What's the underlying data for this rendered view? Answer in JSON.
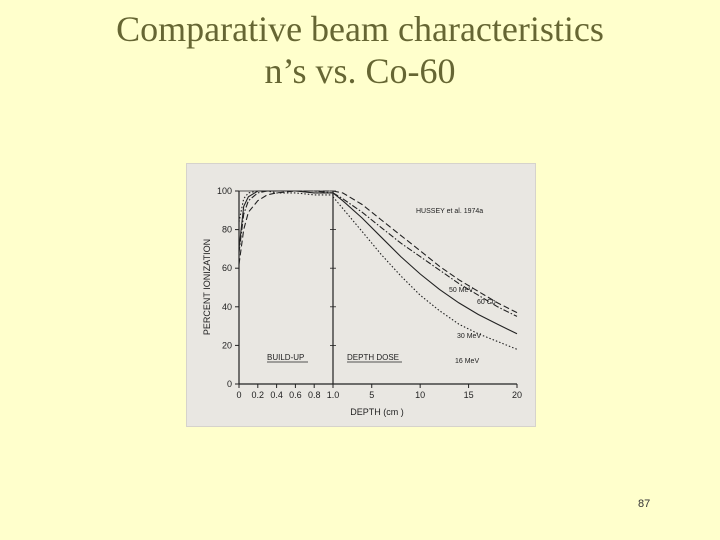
{
  "slide": {
    "title_line1": "Comparative beam characteristics",
    "title_line2": "n’s vs. Co-60",
    "page_number": "87"
  },
  "chart_data": {
    "type": "line",
    "annotation": "HUSSEY et al. 1974a",
    "ylabel": "PERCENT IONIZATION",
    "xlabel": "DEPTH (cm )",
    "ylim": [
      0,
      100
    ],
    "y_ticks": [
      "0",
      "20",
      "40",
      "60",
      "80",
      "100"
    ],
    "regions": [
      {
        "label": "BUILD-UP",
        "xlim": [
          0,
          1.0
        ],
        "ticks": [
          "0",
          "0.2",
          "0.4",
          "0.6",
          "0.8",
          "1.0"
        ]
      },
      {
        "label": "DEPTH DOSE",
        "xlim": [
          1.0,
          20
        ],
        "ticks": [
          "5",
          "10",
          "15",
          "20"
        ]
      }
    ],
    "grid": false,
    "series": [
      {
        "name": "50 MeV",
        "buildup": {
          "x": [
            0,
            0.05,
            0.1,
            0.2,
            0.3,
            0.4,
            0.6,
            0.8,
            1.0
          ],
          "y": [
            62,
            80,
            89,
            95,
            98,
            99,
            100,
            100,
            100
          ]
        },
        "depth": {
          "x": [
            1,
            2,
            4,
            6,
            8,
            10,
            12,
            14,
            16,
            18,
            20
          ],
          "y": [
            100,
            99,
            93,
            85,
            77,
            69,
            61,
            54,
            48,
            42,
            37
          ]
        }
      },
      {
        "name": "60 Co",
        "buildup": {
          "x": [
            0,
            0.05,
            0.1,
            0.2,
            0.3,
            0.4,
            0.6,
            0.8,
            1.0
          ],
          "y": [
            68,
            88,
            95,
            99,
            100,
            100,
            100,
            100,
            99
          ]
        },
        "depth": {
          "x": [
            1,
            2,
            4,
            6,
            8,
            10,
            12,
            14,
            16,
            18,
            20
          ],
          "y": [
            99,
            96,
            89,
            81,
            73,
            66,
            59,
            52,
            46,
            40,
            35
          ]
        }
      },
      {
        "name": "30 MeV",
        "buildup": {
          "x": [
            0,
            0.05,
            0.1,
            0.2,
            0.3,
            0.4,
            0.6,
            0.8,
            1.0
          ],
          "y": [
            70,
            92,
            97,
            100,
            100,
            100,
            100,
            99,
            99
          ]
        },
        "depth": {
          "x": [
            1,
            2,
            4,
            6,
            8,
            10,
            12,
            14,
            16,
            18,
            20
          ],
          "y": [
            99,
            95,
            86,
            76,
            66,
            57,
            49,
            42,
            36,
            31,
            26
          ]
        }
      },
      {
        "name": "16 MeV",
        "buildup": {
          "x": [
            0,
            0.05,
            0.1,
            0.2,
            0.3,
            0.4,
            0.6,
            0.8,
            1.0
          ],
          "y": [
            84,
            96,
            99,
            100,
            100,
            99,
            99,
            98,
            98
          ]
        },
        "depth": {
          "x": [
            1,
            2,
            4,
            6,
            8,
            10,
            12,
            14,
            16,
            18,
            20
          ],
          "y": [
            97,
            91,
            79,
            67,
            56,
            46,
            38,
            31,
            26,
            22,
            18
          ]
        }
      }
    ]
  }
}
